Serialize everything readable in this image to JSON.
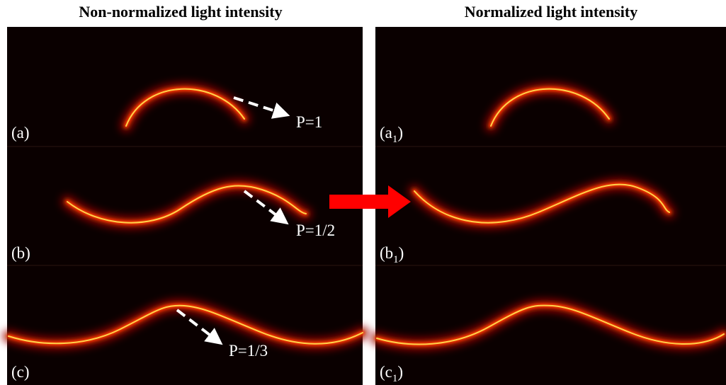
{
  "columns": [
    {
      "title": "Non-normalized light intensity",
      "panels": [
        {
          "label": "(a)",
          "annotation": "P=1"
        },
        {
          "label": "(b)",
          "annotation": "P=1/2"
        },
        {
          "label": "(c)",
          "annotation": "P=1/3"
        }
      ]
    },
    {
      "title": "Normalized light intensity",
      "panels": [
        {
          "label_prefix": "(a",
          "label_subscript": "1",
          "label_suffix": ")"
        },
        {
          "label_prefix": "(b",
          "label_subscript": "1",
          "label_suffix": ")"
        },
        {
          "label_prefix": "(c",
          "label_subscript": "1",
          "label_suffix": ")"
        }
      ]
    }
  ]
}
